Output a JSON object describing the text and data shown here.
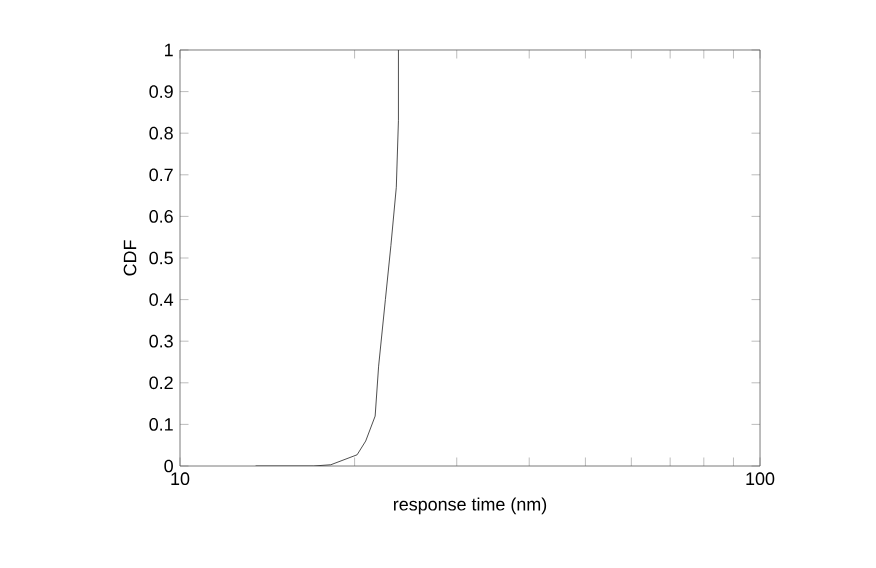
{
  "chart_data": {
    "type": "line",
    "xlabel": "response time (nm)",
    "ylabel": "CDF",
    "x": [
      13.5,
      17.0,
      18.2,
      20.2,
      20.9,
      21.7,
      22.0,
      22.6,
      23.1,
      23.6,
      23.8,
      23.8
    ],
    "values": [
      0,
      0,
      0.003,
      0.027,
      0.06,
      0.12,
      0.24,
      0.4,
      0.53,
      0.67,
      0.83,
      1.0
    ],
    "color": "#222222",
    "log": "x",
    "xlim": [
      10,
      100
    ],
    "ylim": [
      0,
      1
    ],
    "xticks": [
      10,
      {
        "value": 20,
        "label": null
      },
      {
        "value": 30,
        "label": null
      },
      {
        "value": 40,
        "label": null
      },
      {
        "value": 50,
        "label": null
      },
      {
        "value": 60,
        "label": null
      },
      {
        "value": 70,
        "label": null
      },
      {
        "value": 80,
        "label": null
      },
      {
        "value": 90,
        "label": null
      },
      100
    ],
    "yticks": [
      0,
      0.1,
      0.2,
      0.3,
      0.4,
      0.5,
      0.6,
      0.7,
      0.8,
      0.9,
      1
    ],
    "grid": false,
    "marker": "none",
    "line_style": "solid"
  }
}
